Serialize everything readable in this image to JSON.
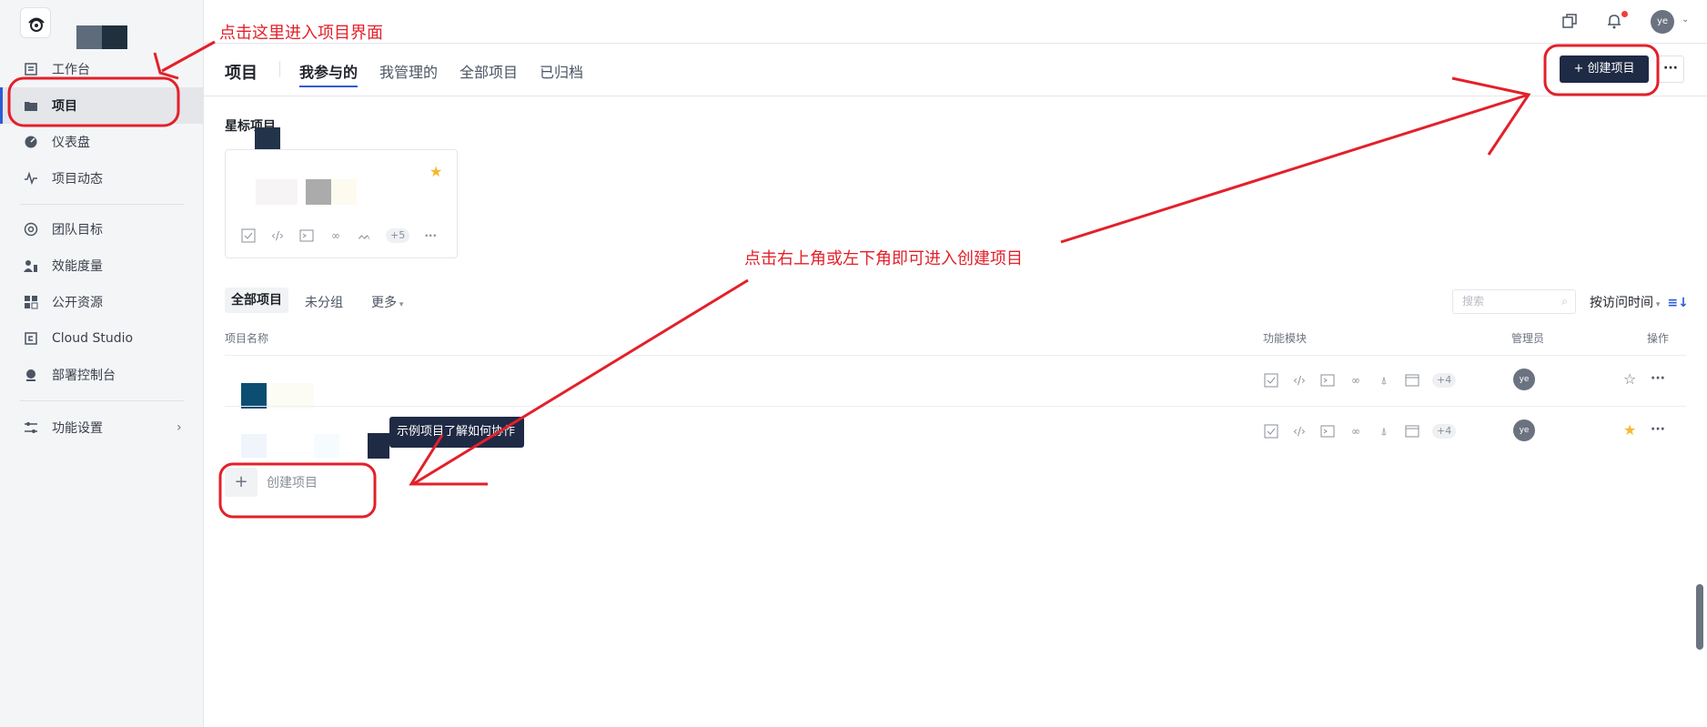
{
  "sidebar": {
    "items": [
      {
        "label": "工作台",
        "icon": "workbench-icon"
      },
      {
        "label": "项目",
        "icon": "folder-icon"
      },
      {
        "label": "仪表盘",
        "icon": "dashboard-icon"
      },
      {
        "label": "项目动态",
        "icon": "activity-icon"
      },
      {
        "label": "团队目标",
        "icon": "target-icon"
      },
      {
        "label": "效能度量",
        "icon": "metrics-icon"
      },
      {
        "label": "公开资源",
        "icon": "resources-icon"
      },
      {
        "label": "Cloud Studio",
        "icon": "cloud-studio-icon"
      },
      {
        "label": "部署控制台",
        "icon": "deploy-icon"
      },
      {
        "label": "功能设置",
        "icon": "settings-icon"
      }
    ]
  },
  "header": {
    "avatar": "ye"
  },
  "tabs": {
    "title": "项目",
    "items": [
      "我参与的",
      "我管理的",
      "全部项目",
      "已归档"
    ],
    "create_button": "创建项目",
    "more_button": "···"
  },
  "starred": {
    "title": "星标项目",
    "more_count": "+5"
  },
  "filters": {
    "items": [
      "全部项目",
      "未分组"
    ],
    "more": "更多",
    "search_placeholder": "搜索",
    "sort": "按访问时间"
  },
  "table": {
    "headers": [
      "项目名称",
      "功能模块",
      "管理员",
      "操作"
    ],
    "rows": [
      {
        "more_count": "+4",
        "manager": "ye",
        "starred": false
      },
      {
        "more_count": "+4",
        "manager": "ye",
        "starred": true
      }
    ],
    "tooltip": "示例项目了解如何协作",
    "add_label": "创建项目"
  },
  "annotations": {
    "top": "点击这里进入项目界面",
    "middle": "点击右上角或左下角即可进入创建项目"
  },
  "colors": {
    "accent": "#2c5bd6",
    "dark_button": "#1f2a44",
    "annotation": "#e3202a",
    "star": "#f5b82e"
  }
}
